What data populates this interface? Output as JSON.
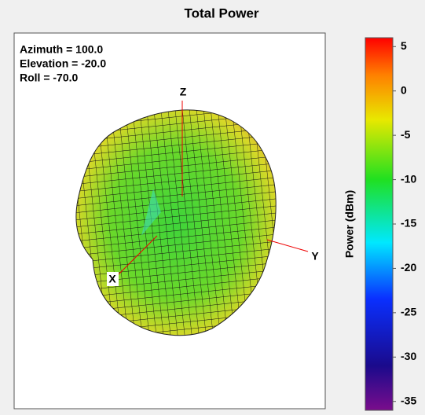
{
  "chart_data": {
    "type": "surface3d",
    "title": "Total Power",
    "annotations": [
      "Azimuth = 100.0",
      "Elevation = -20.0",
      "Roll = -70.0"
    ],
    "axis_labels": {
      "x": "X",
      "y": "Y",
      "z": "Z"
    },
    "colorbar": {
      "label": "Power  (dBm)",
      "lim": [
        -36,
        6
      ],
      "ticks": [
        5,
        0,
        -5,
        -10,
        -15,
        -20,
        -25,
        -30,
        -35
      ]
    }
  }
}
